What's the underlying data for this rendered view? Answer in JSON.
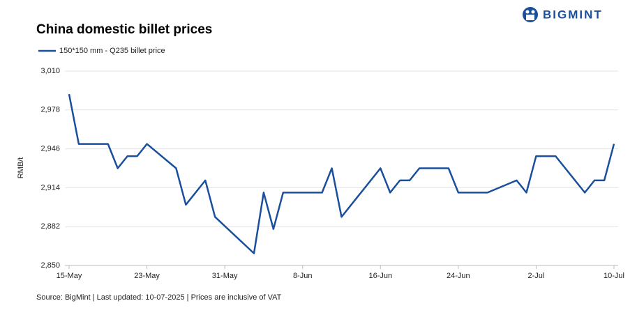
{
  "brand": "BIGMINT",
  "chart_data": {
    "type": "line",
    "title": "China domestic billet prices",
    "y_label": "RMB/t",
    "source": "Source: BigMint | Last updated: 10-07-2025 | Prices are inclusive of VAT",
    "x": [
      "15-May",
      "16-May",
      "19-May",
      "20-May",
      "21-May",
      "22-May",
      "23-May",
      "26-May",
      "27-May",
      "29-May",
      "30-May",
      "3-Jun",
      "4-Jun",
      "5-Jun",
      "6-Jun",
      "10-Jun",
      "11-Jun",
      "12-Jun",
      "16-Jun",
      "17-Jun",
      "18-Jun",
      "19-Jun",
      "20-Jun",
      "23-Jun",
      "24-Jun",
      "27-Jun",
      "30-Jun",
      "1-Jul",
      "2-Jul",
      "4-Jul",
      "7-Jul",
      "8-Jul",
      "9-Jul",
      "10-Jul"
    ],
    "series": [
      {
        "name": "150*150 mm - Q235 billet price",
        "color": "#1a4f9c",
        "values": [
          2991,
          2950,
          2950,
          2930,
          2940,
          2940,
          2950,
          2930,
          2900,
          2920,
          2890,
          2860,
          2910,
          2880,
          2910,
          2910,
          2930,
          2890,
          2930,
          2910,
          2920,
          2920,
          2930,
          2930,
          2910,
          2910,
          2920,
          2910,
          2940,
          2940,
          2910,
          2920,
          2920,
          2950
        ]
      }
    ],
    "xlim": [
      "15-May",
      "10-Jul"
    ],
    "xticks": [
      "15-May",
      "23-May",
      "31-May",
      "8-Jun",
      "16-Jun",
      "24-Jun",
      "2-Jul",
      "10-Jul"
    ],
    "ylim": [
      2850,
      3010
    ],
    "yticks": [
      {
        "value": 2850,
        "label": "2,850"
      },
      {
        "value": 2882,
        "label": "2,882"
      },
      {
        "value": 2914,
        "label": "2,914"
      },
      {
        "value": 2946,
        "label": "2,946"
      },
      {
        "value": 2978,
        "label": "2,978"
      },
      {
        "value": 3010,
        "label": "3,010"
      }
    ],
    "grid": true,
    "legend": "top-left"
  }
}
